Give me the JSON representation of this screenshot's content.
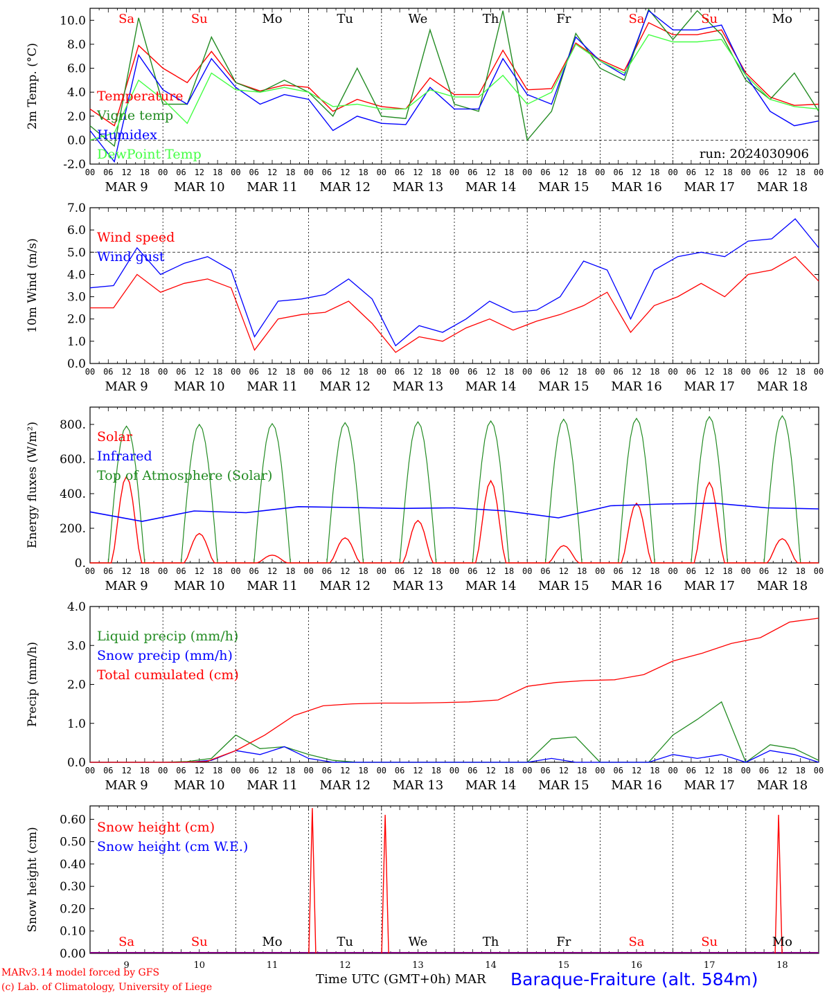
{
  "footer": {
    "model": "MARv3.14 model forced by GFS",
    "lab": "(c) Lab. of Climatology, University of Liege",
    "xlabel": "Time UTC (GMT+0h) MAR",
    "station": "Baraque-Fraiture (alt. 584m)"
  },
  "days": {
    "labels": [
      "Sa",
      "Su",
      "Mo",
      "Tu",
      "We",
      "Th",
      "Fr",
      "Sa",
      "Su",
      "Mo"
    ],
    "weekend_color": "#ff0000",
    "weekday_color": "#000000",
    "dates": [
      "MAR 9",
      "MAR 10",
      "MAR 11",
      "MAR 12",
      "MAR 13",
      "MAR 14",
      "MAR 15",
      "MAR 16",
      "MAR 17",
      "MAR 18"
    ],
    "date_numbers": [
      "9",
      "10",
      "11",
      "12",
      "13",
      "14",
      "15",
      "16",
      "17",
      "18"
    ],
    "hour_ticks": [
      "00",
      "06",
      "12",
      "18"
    ],
    "last_hour_tick": "00"
  },
  "chart_data": [
    {
      "type": "line",
      "ylabel": "2m Temp. (°C)",
      "ylim": [
        -2,
        11
      ],
      "yticks": [
        "-2.0",
        "0.0",
        "2.0",
        "4.0",
        "6.0",
        "8.0",
        "10.0"
      ],
      "yticks_values": [
        -2,
        0,
        2,
        4,
        6,
        8,
        10
      ],
      "run_label": "run: 2024030906",
      "legend_position": "left",
      "ref_line": 0,
      "series": [
        {
          "name": "Temperature",
          "color": "#ff0000",
          "values": [
            2.6,
            1.2,
            7.9,
            6.0,
            4.8,
            7.4,
            4.8,
            4.1,
            4.6,
            4.4,
            2.4,
            3.4,
            2.8,
            2.6,
            5.2,
            3.8,
            3.8,
            7.5,
            4.2,
            4.3,
            8.1,
            6.7,
            5.8,
            9.8,
            8.8,
            8.8,
            9.2,
            5.6,
            3.6,
            2.9,
            3.0
          ]
        },
        {
          "name": "Vigne temp",
          "color": "#228b22",
          "values": [
            1.2,
            -0.5,
            10.2,
            3.0,
            3.0,
            8.6,
            4.8,
            4.0,
            5.0,
            4.0,
            2.0,
            6.0,
            2.0,
            1.8,
            9.2,
            3.0,
            2.4,
            10.8,
            0.0,
            2.4,
            8.9,
            6.0,
            5.0,
            10.9,
            8.4,
            10.8,
            8.8,
            5.0,
            3.4,
            5.6,
            2.4
          ]
        },
        {
          "name": "Humidex",
          "color": "#0000ff",
          "values": [
            0.8,
            -1.8,
            7.1,
            4.2,
            3.0,
            6.8,
            4.4,
            3.0,
            3.8,
            3.4,
            0.8,
            2.0,
            1.4,
            1.3,
            4.4,
            2.6,
            2.6,
            6.8,
            3.8,
            3.0,
            8.6,
            6.6,
            5.4,
            10.8,
            9.2,
            9.2,
            9.6,
            5.4,
            2.4,
            1.2,
            1.6
          ]
        },
        {
          "name": "DewPoint Temp",
          "color": "#44ff44",
          "values": [
            0.0,
            0.6,
            5.0,
            3.4,
            1.4,
            5.6,
            4.2,
            4.0,
            4.4,
            4.0,
            2.8,
            3.0,
            2.6,
            2.6,
            4.2,
            3.6,
            3.6,
            5.4,
            3.0,
            4.0,
            8.0,
            6.6,
            5.6,
            8.8,
            8.2,
            8.2,
            8.4,
            5.4,
            3.4,
            2.8,
            2.6
          ]
        }
      ]
    },
    {
      "type": "line",
      "ylabel": "10m Wind (m/s)",
      "ylim": [
        0,
        7
      ],
      "yticks": [
        "0.0",
        "1.0",
        "2.0",
        "3.0",
        "4.0",
        "5.0",
        "6.0",
        "7.0"
      ],
      "yticks_values": [
        0,
        1,
        2,
        3,
        4,
        5,
        6,
        7
      ],
      "legend_position": "left",
      "ref_line": 5,
      "series": [
        {
          "name": "Wind speed",
          "color": "#ff0000",
          "values": [
            2.5,
            2.5,
            4.0,
            3.2,
            3.6,
            3.8,
            3.4,
            0.6,
            2.0,
            2.2,
            2.3,
            2.8,
            1.8,
            0.5,
            1.2,
            1.0,
            1.6,
            2.0,
            1.5,
            1.9,
            2.2,
            2.6,
            3.2,
            1.4,
            2.6,
            3.0,
            3.6,
            3.0,
            4.0,
            4.2,
            4.8,
            3.7
          ]
        },
        {
          "name": "Wind gust",
          "color": "#0000ff",
          "values": [
            3.4,
            3.5,
            5.2,
            4.0,
            4.5,
            4.8,
            4.2,
            1.2,
            2.8,
            2.9,
            3.1,
            3.8,
            2.9,
            0.8,
            1.7,
            1.4,
            2.0,
            2.8,
            2.3,
            2.4,
            3.0,
            4.6,
            4.2,
            2.0,
            4.2,
            4.8,
            5.0,
            4.8,
            5.5,
            5.6,
            6.5,
            5.2
          ]
        }
      ]
    },
    {
      "type": "line",
      "ylabel": "Energy fluxes (W/m²)",
      "ylim": [
        0,
        900
      ],
      "yticks": [
        "0.",
        "200.",
        "400.",
        "600.",
        "800."
      ],
      "yticks_values": [
        0,
        200,
        400,
        600,
        800
      ],
      "legend_position": "left",
      "series": [
        {
          "name": "Solar",
          "color": "#ff0000",
          "peaks": [
            500,
            170,
            45,
            145,
            245,
            475,
            100,
            345,
            465,
            140
          ]
        },
        {
          "name": "Infrared",
          "color": "#0000ff",
          "values": [
            295,
            240,
            300,
            290,
            325,
            320,
            315,
            318,
            300,
            260,
            330,
            340,
            345,
            318,
            312
          ]
        },
        {
          "name": "Top of Atmosphere (Solar)",
          "color": "#228b22",
          "peaks": [
            790,
            800,
            805,
            810,
            815,
            820,
            830,
            835,
            845,
            850
          ]
        }
      ]
    },
    {
      "type": "line",
      "ylabel": "Precip (mm/h)",
      "ylim": [
        0,
        4
      ],
      "yticks": [
        "0.0",
        "1.0",
        "2.0",
        "3.0",
        "4.0"
      ],
      "yticks_values": [
        0,
        1,
        2,
        3,
        4
      ],
      "legend_position": "left",
      "series": [
        {
          "name": "Liquid precip (mm/h)",
          "color": "#228b22",
          "values": [
            0,
            0,
            0,
            0,
            0.02,
            0.1,
            0.7,
            0.35,
            0.4,
            0.2,
            0.05,
            0,
            0,
            0,
            0,
            0,
            0,
            0,
            0,
            0.6,
            0.65,
            0,
            0,
            0,
            0.7,
            1.1,
            1.55,
            0,
            0.45,
            0.35,
            0.05
          ]
        },
        {
          "name": "Snow precip (mm/h)",
          "color": "#0000ff",
          "values": [
            0,
            0,
            0,
            0,
            0,
            0.05,
            0.3,
            0.2,
            0.4,
            0.1,
            0,
            0,
            0,
            0,
            0,
            0,
            0,
            0,
            0,
            0.1,
            0,
            0,
            0,
            0,
            0.2,
            0.1,
            0.2,
            0,
            0.3,
            0.2,
            0
          ]
        },
        {
          "name": "Total cumulated (cm)",
          "color": "#ff0000",
          "values": [
            0,
            0,
            0,
            0,
            0.02,
            0.3,
            0.7,
            1.2,
            1.45,
            1.5,
            1.52,
            1.52,
            1.53,
            1.55,
            1.6,
            1.95,
            2.05,
            2.1,
            2.12,
            2.25,
            2.6,
            2.8,
            3.05,
            3.2,
            3.6,
            3.7
          ]
        }
      ]
    },
    {
      "type": "line",
      "ylabel": "Snow height (cm)",
      "ylim": [
        0,
        0.66
      ],
      "yticks": [
        "0.00",
        "0.10",
        "0.20",
        "0.30",
        "0.40",
        "0.50",
        "0.60"
      ],
      "yticks_values": [
        0,
        0.1,
        0.2,
        0.3,
        0.4,
        0.5,
        0.6
      ],
      "legend_position": "left",
      "series": [
        {
          "name": "Snow height (cm)",
          "color": "#ff0000",
          "spikes": [
            {
              "day": 3.05,
              "value": 0.65
            },
            {
              "day": 4.05,
              "value": 0.62
            },
            {
              "day": 9.45,
              "value": 0.62
            }
          ]
        },
        {
          "name": "Snow height (cm W.E.)",
          "color": "#0000ff",
          "values": [
            0
          ]
        }
      ]
    }
  ]
}
